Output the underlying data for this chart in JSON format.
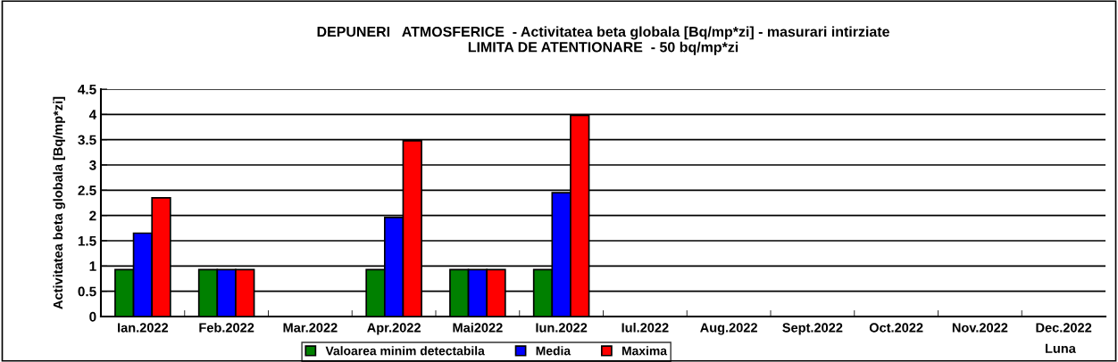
{
  "chart_data": {
    "type": "bar",
    "title": "DEPUNERI   ATMOSFERICE  - Activitatea beta globala [Bq/mp*zi] - masurari intirziate\nLIMITA DE ATENTIONARE  - 50 bq/mp*zi",
    "xlabel": "Luna",
    "ylabel": "Activitatea beta globala [Bq/mp*zi]",
    "categories": [
      "Ian.2022",
      "Feb.2022",
      "Mar.2022",
      "Apr.2022",
      "Mai2022",
      "Iun.2022",
      "Iul.2022",
      "Aug.2022",
      "Sept.2022",
      "Oct.2022",
      "Nov.2022",
      "Dec.2022"
    ],
    "series": [
      {
        "name": "Valoarea minim detectabila",
        "color": "#008000",
        "values": [
          0.93,
          0.93,
          null,
          0.93,
          0.93,
          0.93,
          null,
          null,
          null,
          null,
          null,
          null
        ]
      },
      {
        "name": "Media",
        "color": "#0000ff",
        "values": [
          1.65,
          0.93,
          null,
          1.96,
          0.93,
          2.45,
          null,
          null,
          null,
          null,
          null,
          null
        ]
      },
      {
        "name": "Maxima",
        "color": "#ff0000",
        "values": [
          2.35,
          0.93,
          null,
          3.48,
          0.93,
          3.98,
          null,
          null,
          null,
          null,
          null,
          null
        ]
      }
    ],
    "ylim": [
      0,
      4.5
    ],
    "yticks": [
      0,
      0.5,
      1,
      1.5,
      2,
      2.5,
      3,
      3.5,
      4,
      4.5
    ],
    "grid": "y",
    "legend": "bottom"
  }
}
